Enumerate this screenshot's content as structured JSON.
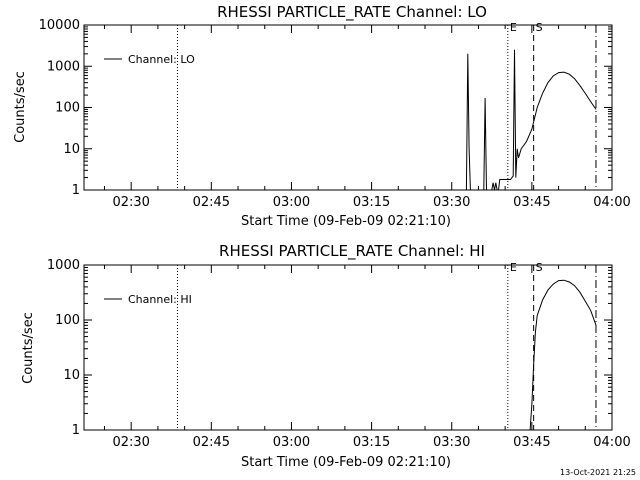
{
  "footer": {
    "timestamp": "13-Oct-2021 21:25"
  },
  "chart_data": [
    {
      "type": "line",
      "title": "RHESSI PARTICLE_RATE Channel: LO",
      "xlabel": "Start Time (09-Feb-09 02:21:10)",
      "ylabel": "Counts/sec",
      "yscale": "log",
      "xlim": [
        "02:21:10",
        "04:00:00"
      ],
      "ylim": [
        1,
        10000
      ],
      "x_ticks": [
        "02:30",
        "02:45",
        "03:00",
        "03:15",
        "03:30",
        "03:45",
        "04:00"
      ],
      "y_ticks": [
        "1",
        "10",
        "100",
        "1000",
        "10000"
      ],
      "legend": {
        "position": "top-left",
        "entries": [
          "Channel: LO"
        ]
      },
      "markers": [
        {
          "time": "02:38:40",
          "style": "dotted",
          "label": ""
        },
        {
          "time": "03:40:30",
          "style": "dotted",
          "label": "E"
        },
        {
          "time": "03:45:20",
          "style": "dashed",
          "label": "S"
        },
        {
          "time": "03:57:00",
          "style": "dash-dot",
          "label": ""
        }
      ],
      "series": [
        {
          "name": "Channel: LO",
          "x": [
            "03:32:45",
            "03:33:00",
            "03:33:15",
            "03:33:30",
            "03:36:00",
            "03:36:15",
            "03:36:30",
            "03:37:00",
            "03:37:15",
            "03:37:30",
            "03:37:45",
            "03:38:00",
            "03:38:15",
            "03:38:30",
            "03:38:45",
            "03:39:00",
            "03:39:30",
            "03:40:00",
            "03:40:30",
            "03:41:00",
            "03:41:30",
            "03:41:45",
            "03:42:00",
            "03:42:15",
            "03:42:30",
            "03:43:00",
            "03:44:00",
            "03:45:00",
            "03:46:00",
            "03:47:00",
            "03:48:00",
            "03:49:00",
            "03:50:00",
            "03:51:00",
            "03:52:00",
            "03:53:00",
            "03:54:00",
            "03:55:00",
            "03:56:00",
            "03:57:00"
          ],
          "y": [
            1,
            2000,
            10,
            1,
            1,
            170,
            1,
            1,
            1,
            1,
            1.5,
            1,
            1.5,
            1,
            1,
            1.8,
            1.8,
            1.8,
            1.8,
            1.8,
            2.2,
            2500,
            2,
            10,
            6,
            10,
            15,
            30,
            100,
            220,
            400,
            580,
            700,
            720,
            640,
            500,
            340,
            220,
            140,
            90
          ]
        }
      ]
    },
    {
      "type": "line",
      "title": "RHESSI PARTICLE_RATE Channel: HI",
      "xlabel": "Start Time (09-Feb-09 02:21:10)",
      "ylabel": "Counts/sec",
      "yscale": "log",
      "xlim": [
        "02:21:10",
        "04:00:00"
      ],
      "ylim": [
        1,
        1000
      ],
      "x_ticks": [
        "02:30",
        "02:45",
        "03:00",
        "03:15",
        "03:30",
        "03:45",
        "04:00"
      ],
      "y_ticks": [
        "1",
        "10",
        "100",
        "1000"
      ],
      "legend": {
        "position": "top-left",
        "entries": [
          "Channel: HI"
        ]
      },
      "markers": [
        {
          "time": "02:38:40",
          "style": "dotted",
          "label": ""
        },
        {
          "time": "03:40:30",
          "style": "dotted",
          "label": "E"
        },
        {
          "time": "03:45:20",
          "style": "dashed",
          "label": "S"
        },
        {
          "time": "03:57:00",
          "style": "dash-dot",
          "label": ""
        }
      ],
      "series": [
        {
          "name": "Channel: HI",
          "x": [
            "03:44:40",
            "03:45:00",
            "03:45:20",
            "03:45:40",
            "03:46:00",
            "03:47:00",
            "03:48:00",
            "03:49:00",
            "03:50:00",
            "03:51:00",
            "03:52:00",
            "03:53:00",
            "03:54:00",
            "03:55:00",
            "03:56:00",
            "03:56:30",
            "03:57:00"
          ],
          "y": [
            1,
            3,
            15,
            60,
            120,
            230,
            350,
            450,
            520,
            530,
            490,
            420,
            320,
            220,
            150,
            110,
            80
          ]
        }
      ]
    }
  ]
}
